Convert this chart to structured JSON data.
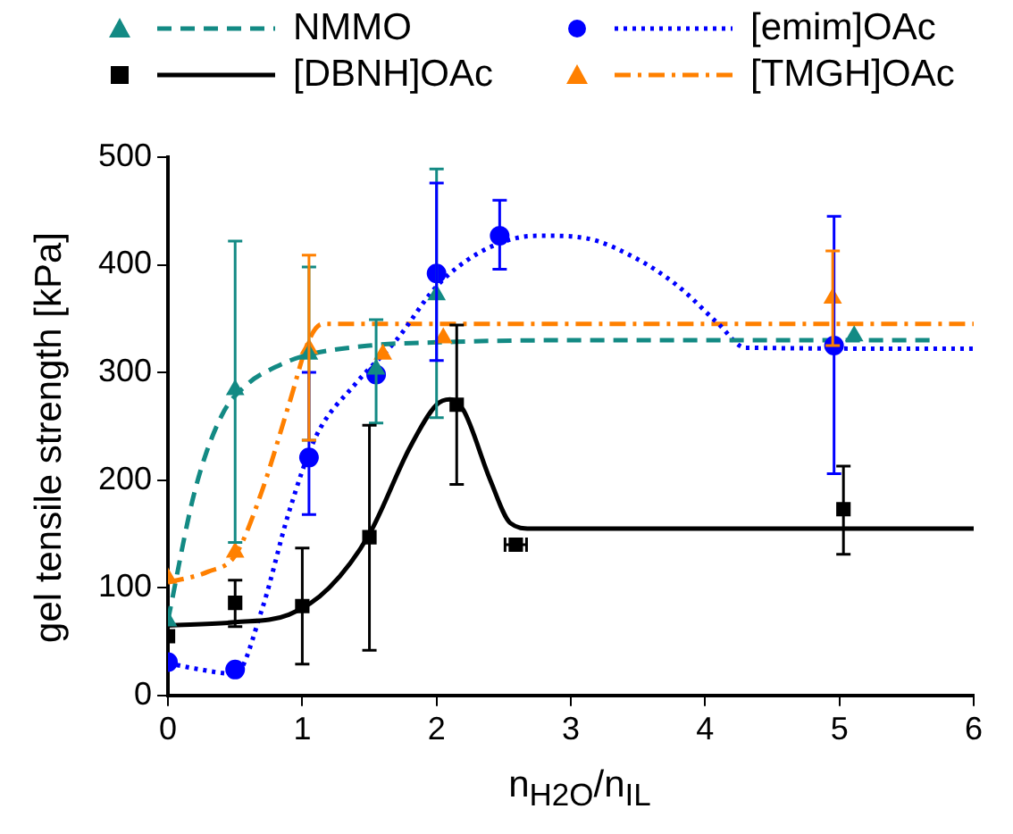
{
  "chart_data": {
    "type": "scatter",
    "xlabel": "n$_{H2O}$/n$_{IL}$",
    "ylabel": "gel tensile strength [kPa]",
    "xlim": [
      0,
      6
    ],
    "xticks": [
      0,
      1,
      2,
      3,
      4,
      5,
      6
    ],
    "ylim": [
      0,
      500
    ],
    "yticks": [
      0,
      100,
      200,
      300,
      400,
      500
    ],
    "grid": false,
    "legend": "top",
    "series": [
      {
        "name": "NMMO",
        "type": "scatter",
        "color": "#138a84",
        "marker": "triangle",
        "x": [
          0,
          0.5,
          1.05,
          1.55,
          2.0,
          5.11
        ],
        "values": [
          69,
          284,
          317,
          303,
          372,
          334
        ],
        "errors": [
          null,
          [
            142,
            422
          ],
          [
            237,
            398
          ],
          [
            253,
            349
          ],
          [
            258,
            489
          ],
          null
        ]
      },
      {
        "name": "[DBNH]OAc",
        "type": "scatter",
        "color": "#000000",
        "marker": "square",
        "x": [
          0,
          0.5,
          1.0,
          1.5,
          2.15,
          2.59,
          5.03
        ],
        "values": [
          55,
          86,
          83,
          147,
          270,
          140,
          173
        ],
        "errors": [
          null,
          [
            64,
            107
          ],
          [
            29,
            137
          ],
          [
            42,
            251
          ],
          [
            196,
            344
          ],
          null,
          [
            131,
            213
          ]
        ],
        "xerrors": [
          null,
          null,
          null,
          null,
          null,
          0.08,
          null
        ]
      },
      {
        "name": "[emim]OAc",
        "type": "scatter",
        "color": "#0000ff",
        "marker": "circle",
        "x": [
          0,
          0.5,
          1.05,
          1.55,
          2.0,
          2.47,
          4.96
        ],
        "values": [
          31,
          24,
          221,
          298,
          392,
          427,
          325
        ],
        "errors": [
          null,
          null,
          [
            168,
            300
          ],
          null,
          [
            311,
            476
          ],
          [
            396,
            460
          ],
          [
            206,
            445
          ]
        ]
      },
      {
        "name": "[TMGH]OAc",
        "type": "scatter",
        "color": "#ff8000",
        "marker": "triangle",
        "x": [
          0,
          0.5,
          1.05,
          1.6,
          2.05,
          4.95
        ],
        "values": [
          109,
          133,
          322,
          317,
          332,
          369
        ],
        "errors": [
          null,
          null,
          [
            237,
            409
          ],
          null,
          null,
          [
            325,
            413
          ]
        ]
      },
      {
        "type": "line",
        "color": "#138a84",
        "line_style": "dashed",
        "x": [
          0,
          0.2,
          0.4,
          0.6,
          0.8,
          1.0,
          1.5,
          2.0,
          3.0,
          5.71
        ],
        "values": [
          70,
          190,
          260,
          290,
          305,
          315,
          325,
          328,
          330,
          330
        ]
      },
      {
        "type": "line",
        "color": "#000000",
        "line_style": "solid",
        "x": [
          0,
          0.5,
          0.9,
          1.2,
          1.5,
          1.8,
          2.0,
          2.1,
          2.2,
          2.4,
          2.55,
          2.7,
          6.0
        ],
        "values": [
          65,
          68,
          75,
          100,
          150,
          230,
          270,
          275,
          265,
          200,
          160,
          155,
          155
        ]
      },
      {
        "type": "line",
        "color": "#0000ff",
        "line_style": "dotted",
        "x": [
          0,
          0.2,
          0.5,
          0.7,
          0.9,
          1.1,
          1.4,
          1.7,
          2.0,
          2.3,
          2.6,
          2.8,
          3.1,
          3.5,
          3.8,
          4.1,
          4.3,
          6.0
        ],
        "values": [
          30,
          25,
          20,
          80,
          170,
          240,
          290,
          330,
          380,
          410,
          425,
          427,
          425,
          405,
          380,
          345,
          323,
          322
        ]
      },
      {
        "type": "line",
        "color": "#ff8000",
        "line_style": "dashdot",
        "x": [
          0,
          0.3,
          0.5,
          0.7,
          0.9,
          1.05,
          1.15,
          6.0
        ],
        "values": [
          105,
          115,
          130,
          190,
          270,
          330,
          345,
          345
        ]
      }
    ]
  }
}
